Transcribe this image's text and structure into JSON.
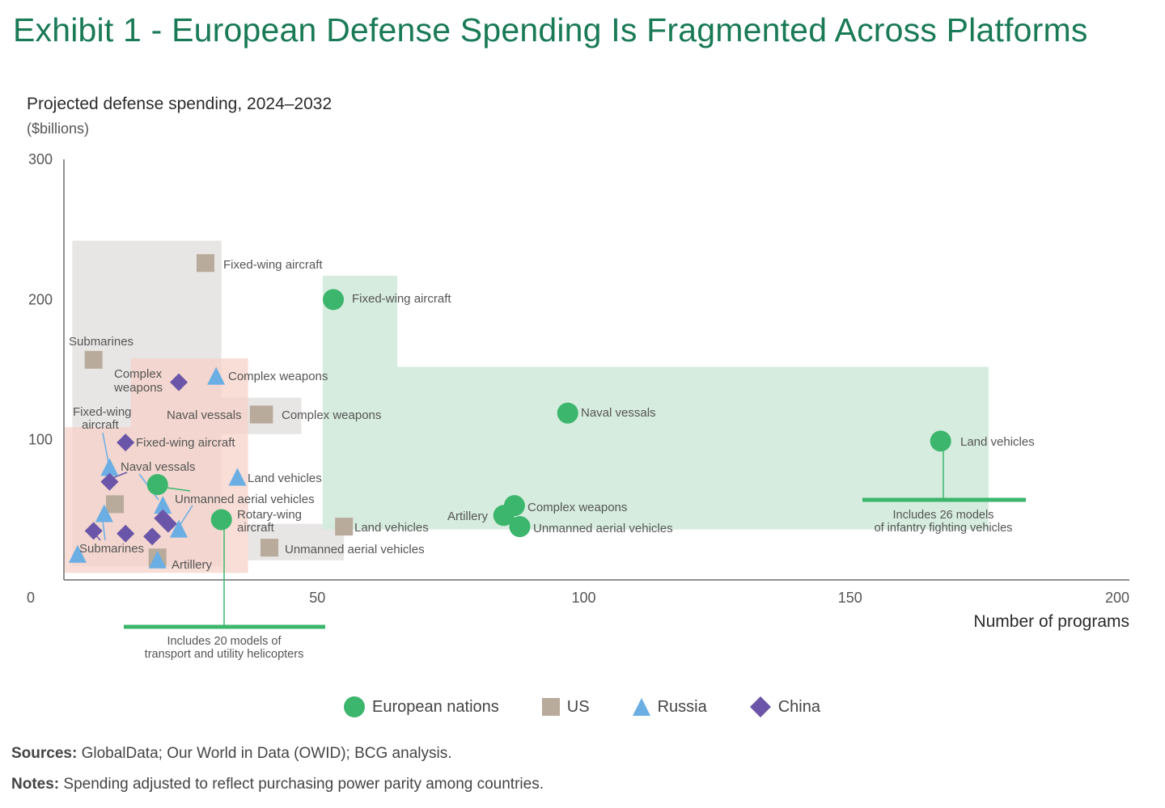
{
  "header": {
    "title": "Exhibit 1 - European Defense Spending Is Fragmented Across Platforms"
  },
  "footer": {
    "sources_label": "Sources:",
    "sources_text": " GlobalData; Our World in Data (OWID); BCG analysis.",
    "notes_label": "Notes:",
    "notes_text": " Spending adjusted to reflect purchasing power parity among countries."
  },
  "colors": {
    "title": "#197a56",
    "european": "#3cb66d",
    "us": "#b9ab9b",
    "russia": "#6aaee4",
    "china": "#6b55a8",
    "eu_region": "#d4ebdc",
    "us_region": "#e7e5e4",
    "ru_cn_region": "#f7cfc6"
  },
  "chart_data": {
    "type": "scatter",
    "title": "Projected defense spending, 2024–2032",
    "ylabel": "Projected defense spending, 2024–2032",
    "yunit": "($billions)",
    "xlabel": "Number of programs",
    "xlim": [
      0,
      200
    ],
    "ylim": [
      0,
      300
    ],
    "xticks": [
      "0",
      "50",
      "100",
      "150",
      "200"
    ],
    "xtick_values": [
      0,
      50,
      100,
      150,
      200
    ],
    "yticks": [
      "100",
      "200",
      "300"
    ],
    "ytick_values": [
      100,
      200,
      300
    ],
    "grid": false,
    "legend_position": "bottom-center",
    "regions": [
      {
        "series": "us",
        "x": [
          4,
          32
        ],
        "y": [
          10,
          242
        ]
      },
      {
        "series": "us",
        "x": [
          32,
          47
        ],
        "y": [
          104,
          130
        ]
      },
      {
        "series": "us",
        "x": [
          37,
          55
        ],
        "y": [
          14,
          40
        ]
      },
      {
        "series": "ru_cn",
        "x": [
          0,
          37
        ],
        "y": [
          5,
          109
        ]
      },
      {
        "series": "ru_cn",
        "x": [
          15,
          37
        ],
        "y": [
          109,
          158
        ]
      },
      {
        "series": "eu",
        "x": [
          51,
          65
        ],
        "y": [
          36,
          217
        ]
      },
      {
        "series": "eu",
        "x": [
          65,
          176
        ],
        "y": [
          36,
          152
        ]
      }
    ],
    "series": [
      {
        "name": "European nations",
        "key": "european",
        "marker": "circle",
        "points": [
          {
            "label": "Fixed-wing aircraft",
            "x": 53,
            "y": 200
          },
          {
            "label": "Naval vessals",
            "x": 97,
            "y": 119
          },
          {
            "label": "Land vehicles",
            "x": 167,
            "y": 99
          },
          {
            "label": "Complex weapons",
            "x": 87,
            "y": 53
          },
          {
            "label": "Artillery",
            "x": 85,
            "y": 46
          },
          {
            "label": "Unmanned aerial vehicles",
            "x": 88,
            "y": 38
          },
          {
            "label": "Unmanned aerial vehicles",
            "x": 20,
            "y": 68
          },
          {
            "label": "Rotary-wing aircraft",
            "x": 32,
            "y": 43
          }
        ]
      },
      {
        "name": "US",
        "key": "us",
        "marker": "square",
        "points": [
          {
            "label": "Fixed-wing aircraft",
            "x": 29,
            "y": 226
          },
          {
            "label": "Submarines",
            "x": 8,
            "y": 157
          },
          {
            "label": "Naval vessals",
            "x": 39,
            "y": 118
          },
          {
            "label": "Complex weapons",
            "x": 40,
            "y": 118
          },
          {
            "label": "Land vehicles",
            "x": 55,
            "y": 38
          },
          {
            "label": "Unmanned aerial vehicles",
            "x": 41,
            "y": 23
          },
          {
            "label": "Artillery",
            "x": 20,
            "y": 16
          },
          {
            "label": "",
            "x": 12,
            "y": 54
          }
        ]
      },
      {
        "name": "Russia",
        "key": "russia",
        "marker": "triangle",
        "points": [
          {
            "label": "Complex weapons",
            "x": 31,
            "y": 145
          },
          {
            "label": "Fixed-wing aircraft",
            "x": 11,
            "y": 80
          },
          {
            "label": "Land vehicles",
            "x": 35,
            "y": 73
          },
          {
            "label": "Naval vessals",
            "x": 21,
            "y": 53
          },
          {
            "label": "Unmanned aerial vehicles",
            "x": 24,
            "y": 36
          },
          {
            "label": "Submarines",
            "x": 10,
            "y": 47
          },
          {
            "label": "",
            "x": 5,
            "y": 18
          },
          {
            "label": "Artillery",
            "x": 20,
            "y": 14
          }
        ]
      },
      {
        "name": "China",
        "key": "china",
        "marker": "diamond",
        "points": [
          {
            "label": "Complex weapons",
            "x": 24,
            "y": 141
          },
          {
            "label": "Fixed-wing aircraft",
            "x": 14,
            "y": 98
          },
          {
            "label": "Naval vessals",
            "x": 11,
            "y": 70
          },
          {
            "label": "Submarines",
            "x": 8,
            "y": 35
          },
          {
            "label": "",
            "x": 14,
            "y": 33
          },
          {
            "label": "",
            "x": 19,
            "y": 31
          },
          {
            "label": "",
            "x": 21,
            "y": 44
          },
          {
            "label": "",
            "x": 22,
            "y": 40
          }
        ]
      }
    ],
    "annotations": [
      {
        "text_lines": [
          "Includes 26 models",
          "of infantry fighting vehicles"
        ],
        "anchor_series": "european",
        "anchor_label": "Land vehicles"
      },
      {
        "text_lines": [
          "Includes 20 models of",
          "transport and utility helicopters"
        ],
        "anchor_series": "european",
        "anchor_label": "Rotary-wing aircraft"
      }
    ],
    "text_labels": [
      {
        "text": "Fixed-wing aircraft",
        "series": "us"
      },
      {
        "text": "Fixed-wing aircraft",
        "series": "european"
      },
      {
        "text": "Submarines",
        "series": "us"
      },
      {
        "text": "Complex",
        "series": "china"
      },
      {
        "text": "weapons",
        "series": "china"
      },
      {
        "text": "Complex weapons",
        "series": "russia"
      },
      {
        "text": "Naval vessals",
        "series": "us"
      },
      {
        "text": "Complex weapons",
        "series": "us"
      },
      {
        "text": "Naval vessals",
        "series": "european"
      },
      {
        "text": "Fixed-wing",
        "series": "russia"
      },
      {
        "text": "aircraft",
        "series": "russia"
      },
      {
        "text": "Fixed-wing aircraft",
        "series": "china"
      },
      {
        "text": "Land vehicles",
        "series": "european"
      },
      {
        "text": "Naval vessals",
        "series": "china"
      },
      {
        "text": "Land vehicles",
        "series": "russia"
      },
      {
        "text": "Unmanned aerial vehicles",
        "series": "european"
      },
      {
        "text": "Complex weapons",
        "series": "european"
      },
      {
        "text": "Rotary-wing",
        "series": "european"
      },
      {
        "text": "aircraft",
        "series": "european"
      },
      {
        "text": "Artillery",
        "series": "european"
      },
      {
        "text": "Land vehicles",
        "series": "us"
      },
      {
        "text": "Unmanned aerial vehicles",
        "series": "european"
      },
      {
        "text": "Submarines",
        "series": "china"
      },
      {
        "text": "Unmanned aerial vehicles",
        "series": "us"
      },
      {
        "text": "Artillery",
        "series": "us"
      }
    ]
  },
  "legend": {
    "items": [
      {
        "label": "European nations",
        "key": "european",
        "marker": "circle"
      },
      {
        "label": "US",
        "key": "us",
        "marker": "square"
      },
      {
        "label": "Russia",
        "key": "russia",
        "marker": "triangle"
      },
      {
        "label": "China",
        "key": "china",
        "marker": "diamond"
      }
    ]
  }
}
